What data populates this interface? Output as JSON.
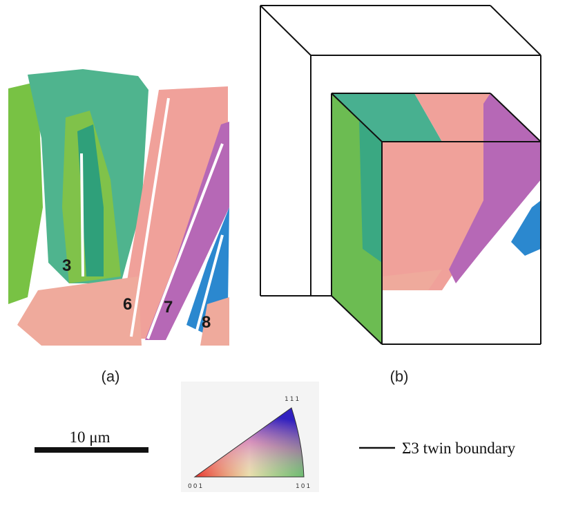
{
  "panel_a": {
    "grain_labels": [
      "3",
      "6",
      "7",
      "8"
    ],
    "caption": "(a)"
  },
  "panel_b": {
    "caption": "(b)"
  },
  "scale_bar": {
    "label": "10 μm"
  },
  "color_key": {
    "top": "111",
    "left": "001",
    "right": "101"
  },
  "legend": {
    "label": "Σ3 twin boundary"
  }
}
